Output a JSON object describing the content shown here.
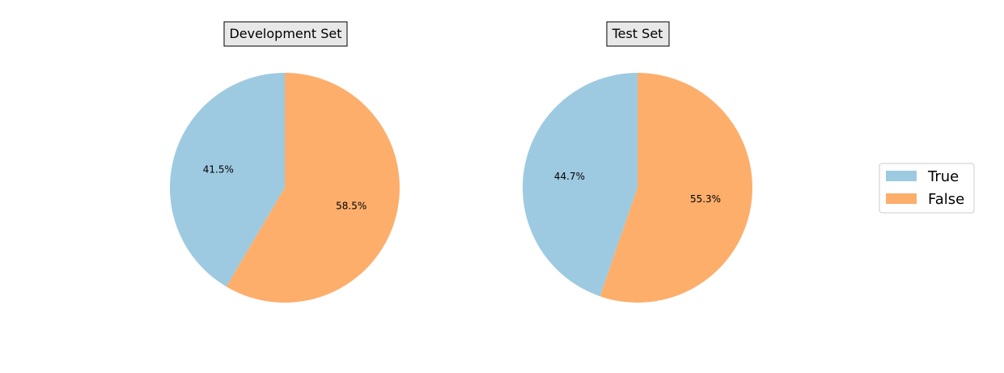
{
  "chart_data": [
    {
      "type": "pie",
      "title": "Development Set",
      "labels": [
        "True",
        "False"
      ],
      "values": [
        41.5,
        58.5
      ],
      "value_labels": [
        "41.5%",
        "58.5%"
      ],
      "colors": [
        "#9ecae1",
        "#fdae6b"
      ]
    },
    {
      "type": "pie",
      "title": "Test Set",
      "labels": [
        "True",
        "False"
      ],
      "values": [
        44.7,
        55.3
      ],
      "value_labels": [
        "44.7%",
        "55.3%"
      ],
      "colors": [
        "#9ecae1",
        "#fdae6b"
      ]
    }
  ],
  "legend": {
    "placement": "right",
    "items": [
      {
        "label": "True",
        "color": "#9ecae1"
      },
      {
        "label": "False",
        "color": "#fdae6b"
      }
    ]
  }
}
